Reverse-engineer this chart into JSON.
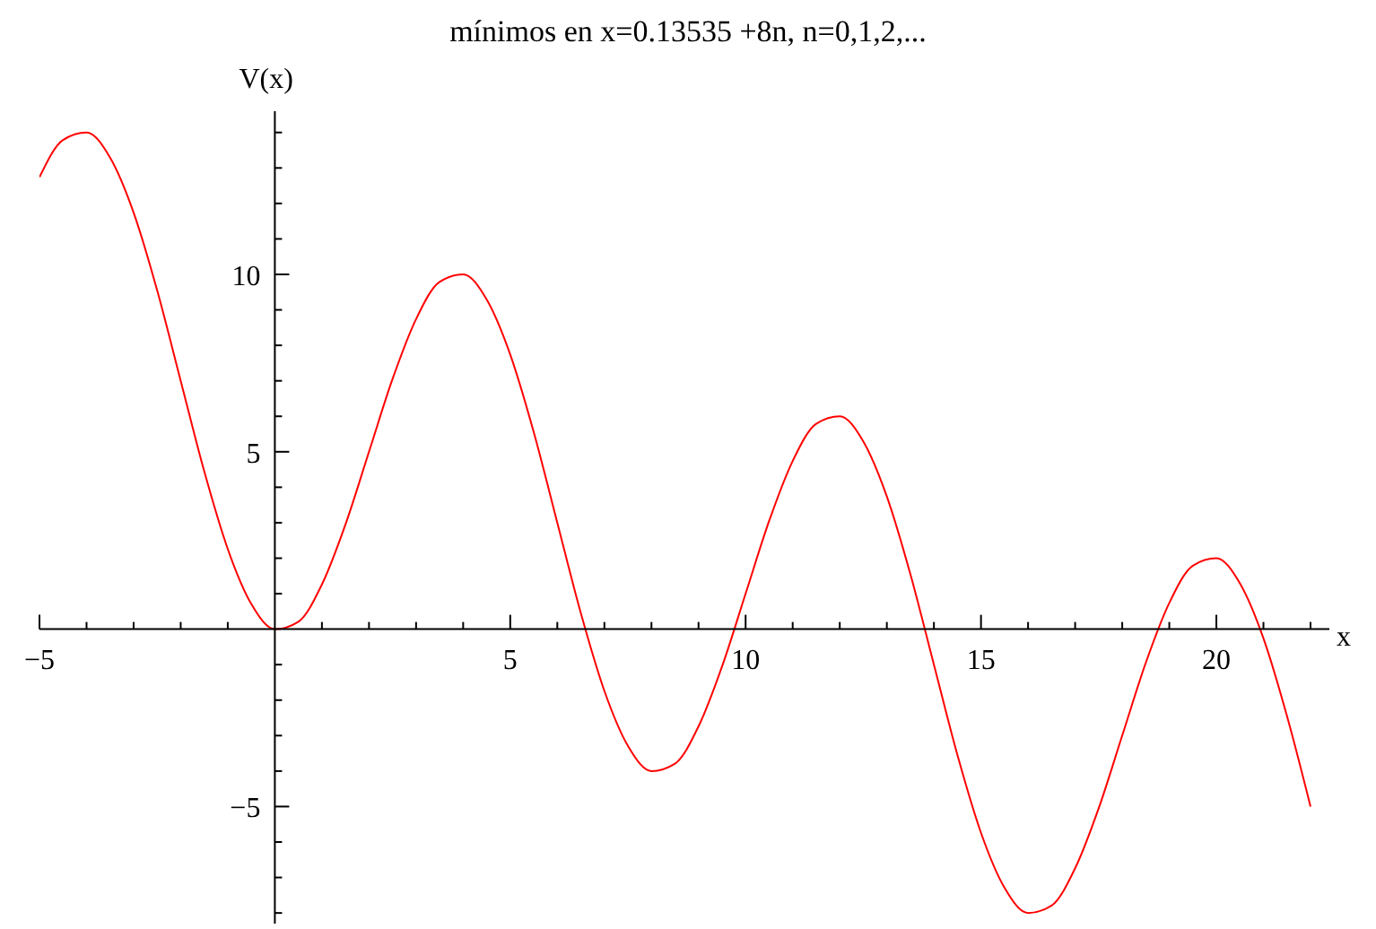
{
  "chart_data": {
    "type": "line",
    "title": "mínimos en x=0.13535 +8n, n=0,1,2,...",
    "xlabel": "x",
    "ylabel": "V(x)",
    "x": [
      -5,
      -4.5,
      -4,
      -3.5,
      -3,
      -2.5,
      -2,
      -1.5,
      -1,
      -0.5,
      0,
      0.5,
      1,
      1.5,
      2,
      2.5,
      3,
      3.5,
      4,
      4.5,
      5,
      5.5,
      6,
      6.5,
      7,
      7.5,
      8,
      8.5,
      9,
      9.5,
      10,
      10.5,
      11,
      11.5,
      12,
      12.5,
      13,
      13.5,
      14,
      14.5,
      15,
      15.5,
      16,
      16.5,
      17,
      17.5,
      18,
      18.5,
      19,
      19.5,
      20,
      20.5,
      21,
      21.5,
      22
    ],
    "series": [
      {
        "color": "#ff0000",
        "values": [
          12.74,
          13.79,
          14,
          13.29,
          11.74,
          9.55,
          7,
          4.45,
          2.26,
          0.71,
          0,
          0.21,
          1.26,
          2.95,
          5,
          7.05,
          8.74,
          9.79,
          10,
          9.29,
          7.74,
          5.55,
          3,
          0.45,
          -1.74,
          -3.29,
          -4,
          -3.79,
          -2.74,
          -1.05,
          1,
          3.05,
          4.74,
          5.79,
          6,
          5.29,
          3.74,
          1.55,
          -1,
          -3.55,
          -5.74,
          -7.29,
          -8,
          -7.79,
          -6.74,
          -5.05,
          -3,
          -0.95,
          0.74,
          1.79,
          2,
          1.29,
          -0.26,
          -2.45,
          -5
        ]
      }
    ],
    "xlim": [
      -5,
      22.4
    ],
    "ylim": [
      -8.3,
      14.6
    ],
    "xticks": [
      -5,
      {
        "value": -4,
        "label": null
      },
      {
        "value": -3,
        "label": null
      },
      {
        "value": -2,
        "label": null
      },
      {
        "value": -1,
        "label": null
      },
      {
        "value": 1,
        "label": null
      },
      {
        "value": 2,
        "label": null
      },
      {
        "value": 3,
        "label": null
      },
      {
        "value": 4,
        "label": null
      },
      5,
      {
        "value": 6,
        "label": null
      },
      {
        "value": 7,
        "label": null
      },
      {
        "value": 8,
        "label": null
      },
      {
        "value": 9,
        "label": null
      },
      10,
      {
        "value": 11,
        "label": null
      },
      {
        "value": 12,
        "label": null
      },
      {
        "value": 13,
        "label": null
      },
      {
        "value": 14,
        "label": null
      },
      15,
      {
        "value": 16,
        "label": null
      },
      {
        "value": 17,
        "label": null
      },
      {
        "value": 18,
        "label": null
      },
      {
        "value": 19,
        "label": null
      },
      20,
      {
        "value": 21,
        "label": null
      },
      {
        "value": 22,
        "label": null
      }
    ],
    "yticks": [
      {
        "value": -8,
        "label": null
      },
      {
        "value": -7,
        "label": null
      },
      {
        "value": -6,
        "label": null
      },
      -5,
      {
        "value": -4,
        "label": null
      },
      {
        "value": -3,
        "label": null
      },
      {
        "value": -2,
        "label": null
      },
      {
        "value": -1,
        "label": null
      },
      {
        "value": 1,
        "label": null
      },
      {
        "value": 2,
        "label": null
      },
      {
        "value": 3,
        "label": null
      },
      {
        "value": 4,
        "label": null
      },
      5,
      {
        "value": 6,
        "label": null
      },
      {
        "value": 7,
        "label": null
      },
      {
        "value": 8,
        "label": null
      },
      {
        "value": 9,
        "label": null
      },
      10,
      {
        "value": 11,
        "label": null
      },
      {
        "value": 12,
        "label": null
      },
      {
        "value": 13,
        "label": null
      },
      {
        "value": 14,
        "label": null
      }
    ],
    "grid": false,
    "legend": false,
    "marker": "none",
    "line_style": "solid"
  }
}
